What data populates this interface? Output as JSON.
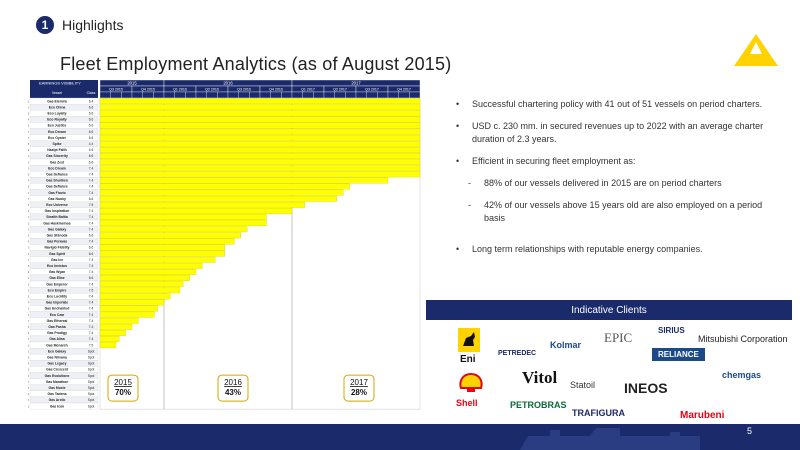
{
  "header": {
    "section_number": "1",
    "section_title": "Highlights"
  },
  "title": "Fleet Employment Analytics (as of August 2015)",
  "chart_data": {
    "type": "gantt",
    "header_left": "EARNINGS VISIBILITY",
    "col_vessel": "Vessel",
    "col_class": "Class",
    "years": [
      "2015",
      "2016",
      "2017"
    ],
    "quarters": [
      "Q3 2015",
      "Q4 2015",
      "Q1 2016",
      "Q2 2016",
      "Q3 2016",
      "Q4 2016",
      "Q1 2017",
      "Q2 2017",
      "Q3 2017",
      "Q4 2017"
    ],
    "vessels": [
      {
        "n": 1,
        "name": "Gas Elemira",
        "cls": "6.4",
        "end": 12
      },
      {
        "n": 2,
        "name": "Eco China",
        "cls": "6.6",
        "end": 12
      },
      {
        "n": 3,
        "name": "Eco Loyalty",
        "cls": "6.6",
        "end": 12
      },
      {
        "n": 4,
        "name": "Eco Royalty",
        "cls": "6.6",
        "end": 12
      },
      {
        "n": 5,
        "name": "Eco Justice",
        "cls": "6.6",
        "end": 12
      },
      {
        "n": 6,
        "name": "Eco Dream",
        "cls": "6.6",
        "end": 12
      },
      {
        "n": 7,
        "name": "Eco Oyster",
        "cls": "6.6",
        "end": 12
      },
      {
        "n": 8,
        "name": "Spike",
        "cls": "4.4",
        "end": 12
      },
      {
        "n": 9,
        "name": "Naxipt Faith",
        "cls": "4.6",
        "end": 12
      },
      {
        "n": 10,
        "name": "Gas Sincerity",
        "cls": "6.6",
        "end": 12
      },
      {
        "n": 11,
        "name": "Gas Zest",
        "cls": "6.6",
        "end": 12
      },
      {
        "n": 12,
        "name": "Eco Dream",
        "cls": "7.4",
        "end": 10.2
      },
      {
        "n": 13,
        "name": "Gas Defiance",
        "cls": "7.4",
        "end": 10.2
      },
      {
        "n": 14,
        "name": "Gas Shuriken",
        "cls": "7.4",
        "end": 9.0
      },
      {
        "n": 15,
        "name": "Gas Defiance",
        "cls": "7.4",
        "end": 7.8
      },
      {
        "n": 16,
        "name": "Gas Flovio",
        "cls": "7.4",
        "end": 7.6
      },
      {
        "n": 17,
        "name": "Gas Nooky",
        "cls": "6.6",
        "end": 7.4
      },
      {
        "n": 18,
        "name": "Eco Universe",
        "cls": "7.5",
        "end": 6.4
      },
      {
        "n": 19,
        "name": "Gas Inspiration",
        "cls": "7.4",
        "end": 6.0
      },
      {
        "n": 20,
        "name": "Stealth Baltia",
        "cls": "7.4",
        "end": 5.2
      },
      {
        "n": 21,
        "name": "Gas Haskinelnos",
        "cls": "7.4",
        "end": 5.2
      },
      {
        "n": 22,
        "name": "Gas Galaxy",
        "cls": "7.4",
        "end": 4.6
      },
      {
        "n": 23,
        "name": "Gas Shinoda",
        "cls": "6.6",
        "end": 4.4
      },
      {
        "n": 24,
        "name": "Gas Peravas",
        "cls": "7.4",
        "end": 4.2
      },
      {
        "n": 25,
        "name": "Navigio Fidelity",
        "cls": "6.6",
        "end": 3.9
      },
      {
        "n": 26,
        "name": "Gas Spirit",
        "cls": "6.6",
        "end": 3.9
      },
      {
        "n": 27,
        "name": "Gas Ice",
        "cls": "7.4",
        "end": 3.6
      },
      {
        "n": 28,
        "name": "Eco Invictus",
        "cls": "7.4",
        "end": 3.2
      },
      {
        "n": 29,
        "name": "Gas Wyan",
        "cls": "7.4",
        "end": 3.0
      },
      {
        "n": 30,
        "name": "Gas Elise",
        "cls": "6.6",
        "end": 2.8
      },
      {
        "n": 31,
        "name": "Gas Emperor",
        "cls": "7.4",
        "end": 2.6
      },
      {
        "n": 32,
        "name": "Eco Empire",
        "cls": "7.5",
        "end": 2.5
      },
      {
        "n": 33,
        "name": "Eco Lucidity",
        "cls": "7.4",
        "end": 2.2
      },
      {
        "n": 34,
        "name": "Gas Imperiale",
        "cls": "7.4",
        "end": 2.0
      },
      {
        "n": 35,
        "name": "Gas Enchanted",
        "cls": "7.4",
        "end": 1.8
      },
      {
        "n": 36,
        "name": "Eco Czar",
        "cls": "7.4",
        "end": 1.7
      },
      {
        "n": 37,
        "name": "Gas Ethereal",
        "cls": "7.4",
        "end": 1.2
      },
      {
        "n": 38,
        "name": "Gas Pasha",
        "cls": "7.4",
        "end": 1.0
      },
      {
        "n": 39,
        "name": "Gas Prodigy",
        "cls": "7.4",
        "end": 0.8
      },
      {
        "n": 40,
        "name": "Gas Alisa",
        "cls": "7.4",
        "end": 0.6
      },
      {
        "n": 41,
        "name": "Gas Monarch",
        "cls": "7.5",
        "end": 0.5
      },
      {
        "n": 42,
        "name": "Eco Galaxy",
        "cls": "Spot",
        "end": 0
      },
      {
        "n": 43,
        "name": "Gas Nirvana",
        "cls": "Spot",
        "end": 0
      },
      {
        "n": 44,
        "name": "Gas Legacy",
        "cls": "Spot",
        "end": 0
      },
      {
        "n": 45,
        "name": "Gas Crescent",
        "cls": "Spot",
        "end": 0
      },
      {
        "n": 46,
        "name": "Gas Evolutione",
        "cls": "Spot",
        "end": 0
      },
      {
        "n": 47,
        "name": "Gas Marathon",
        "cls": "Spot",
        "end": 0
      },
      {
        "n": 48,
        "name": "Gas Moxie",
        "cls": "Spot",
        "end": 0
      },
      {
        "n": 49,
        "name": "Gas Tadena",
        "cls": "Spot",
        "end": 0
      },
      {
        "n": 50,
        "name": "Gas Arctic",
        "cls": "Spot",
        "end": 0
      },
      {
        "n": 51,
        "name": "Gas Icon",
        "cls": "Spot",
        "end": 0
      }
    ],
    "coverage": [
      {
        "year": "2015",
        "pct": "70%"
      },
      {
        "year": "2016",
        "pct": "43%"
      },
      {
        "year": "2017",
        "pct": "28%"
      }
    ]
  },
  "bullets": {
    "b1": "Successful chartering policy with 41 out of 51 vessels on period charters.",
    "b2": "USD c. 230 mm. in secured revenues up to 2022 with an average charter duration of 2.3 years.",
    "b3": "Efficient in securing fleet employment as:",
    "s1": "88% of our vessels delivered in 2015 are on period charters",
    "s2": "42% of our vessels above 15 years old are also employed on a period basis",
    "b4": "Long term relationships with reputable energy companies."
  },
  "clients": {
    "header": "Indicative Clients",
    "names": {
      "eni": "Eni",
      "petredec": "PETREDEC",
      "kolmar": "Kolmar",
      "epic": "EPIC",
      "sirius": "SIRIUS",
      "reliance": "RELIANCE",
      "mitsubishi": "Mitsubishi Corporation",
      "shell": "Shell",
      "vitol": "Vitol",
      "petrobras": "PETROBRAS",
      "statoil": "Statoil",
      "trafigura": "TRAFIGURA",
      "ineos": "INEOS",
      "chemgas": "chemgas",
      "marubeni": "Marubeni"
    }
  },
  "footer": {
    "page": "5"
  },
  "colors": {
    "navy": "#1b2a6b",
    "bar": "#ffff00",
    "logo": "#ffd200"
  }
}
